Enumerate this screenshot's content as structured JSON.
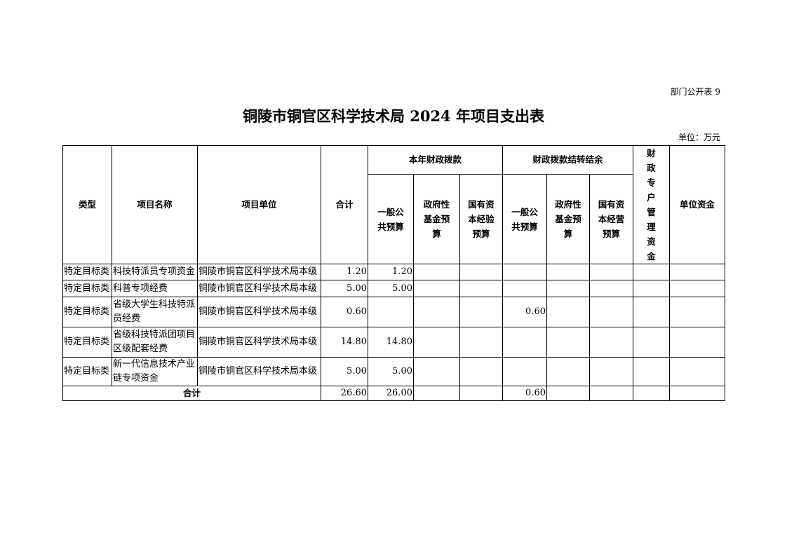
{
  "form_no": "部门公开表 9",
  "title": "铜陵市铜官区科学技术局 2024 年项目支出表",
  "unit": "单位：万元",
  "headers": {
    "type": "类型",
    "name": "项目名称",
    "org": "项目单位",
    "total": "合计",
    "current": "本年财政拨款",
    "carryover": "财政拨款结转结余",
    "special": "财政专户管理资金",
    "own": "单位资金",
    "cur_general": "一般公共预算",
    "cur_fund": "政府性基金预算",
    "cur_state": "国有资本经验预算",
    "co_general": "一般公共预算",
    "co_fund": "政府性基金预算",
    "co_state": "国有资本经营预算"
  },
  "rows": [
    {
      "type": "特定目标类",
      "name": "科技特派员专项资金",
      "org": "铜陵市铜官区科学技术局本级",
      "total": "1.20",
      "cur_general": "1.20",
      "co_general": ""
    },
    {
      "type": "特定目标类",
      "name": "科普专项经费",
      "org": "铜陵市铜官区科学技术局本级",
      "total": "5.00",
      "cur_general": "5.00",
      "co_general": ""
    },
    {
      "type": "特定目标类",
      "name": "省级大学生科技特派员经费",
      "org": "铜陵市铜官区科学技术局本级",
      "total": "0.60",
      "cur_general": "",
      "co_general": "0.60"
    },
    {
      "type": "特定目标类",
      "name": "省级科技特派团项目区级配套经费",
      "org": "铜陵市铜官区科学技术局本级",
      "total": "14.80",
      "cur_general": "14.80",
      "co_general": ""
    },
    {
      "type": "特定目标类",
      "name": "新一代信息技术产业链专项资金",
      "org": "铜陵市铜官区科学技术局本级",
      "total": "5.00",
      "cur_general": "5.00",
      "co_general": ""
    }
  ],
  "sum": {
    "label": "合计",
    "total": "26.60",
    "cur_general": "26.00",
    "co_general": "0.60"
  }
}
